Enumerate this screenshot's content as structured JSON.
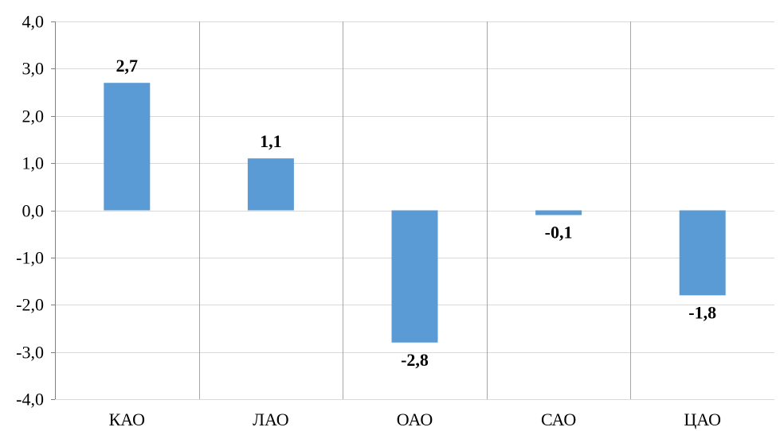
{
  "chart_data": {
    "type": "bar",
    "title": "",
    "xlabel": "",
    "ylabel": "",
    "categories": [
      "КАО",
      "ЛАО",
      "ОАО",
      "САО",
      "ЦАО"
    ],
    "values": [
      2.7,
      1.1,
      -2.8,
      -0.1,
      -1.8
    ],
    "value_labels": [
      "2,7",
      "1,1",
      "-2,8",
      "-0,1",
      "-1,8"
    ],
    "ylim": [
      -4.0,
      4.0
    ],
    "yticks": [
      4.0,
      3.0,
      2.0,
      1.0,
      0.0,
      -1.0,
      -2.0,
      -3.0,
      -4.0
    ],
    "ytick_labels": [
      "4,0",
      "3,0",
      "2,0",
      "1,0",
      "0,0",
      "-1,0",
      "-2,0",
      "-3,0",
      "-4,0"
    ],
    "grid": true,
    "legend": "none",
    "colors": {
      "bar": "#5B9BD5",
      "grid": "#D9D9D9",
      "axis": "#808080",
      "separator": "#A6A6A6"
    }
  }
}
